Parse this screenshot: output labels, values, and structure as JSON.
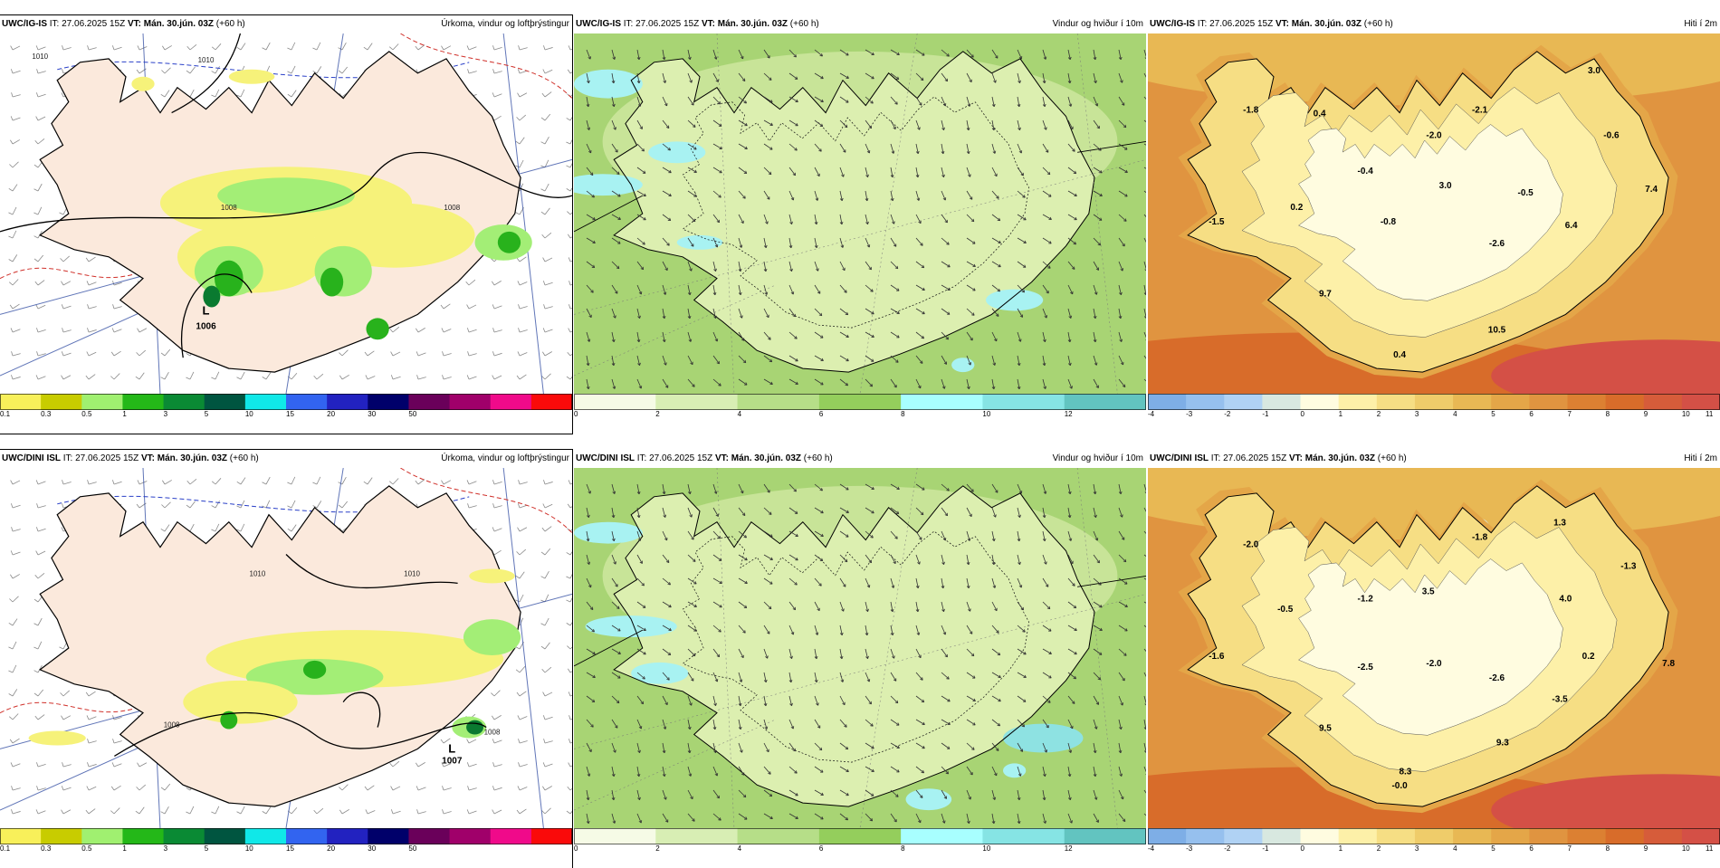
{
  "panels": [
    {
      "model": "UWC/IG-IS",
      "it_label": "IT:",
      "it_value": "27.06.2025 15Z",
      "vt_label": "VT:",
      "vt_value": "Mán. 30.jún. 03Z",
      "lead": "(+60 h)",
      "field": "Úrkoma, vindur og loftþrýstingur",
      "type": "precip",
      "colorbar": {
        "colors": [
          "#f8f05a",
          "#c8cc00",
          "#a0f070",
          "#24b818",
          "#0a8a34",
          "#005540",
          "#10e8e8",
          "#3264f0",
          "#2222c0",
          "#00006a",
          "#6a005a",
          "#a0006a",
          "#f00a8a",
          "#fa0a0a"
        ],
        "labels": [
          "0.1",
          "0.3",
          "0.5",
          "1",
          "3",
          "5",
          "10",
          "15",
          "20",
          "30",
          "50"
        ]
      },
      "annotations": [
        {
          "text": "L",
          "kind": "low",
          "ax": 0.36,
          "ay": 0.78
        },
        {
          "text": "1006",
          "kind": "pressure",
          "ax": 0.36,
          "ay": 0.82
        },
        {
          "text": "1008",
          "kind": "isobar",
          "ax": 0.4,
          "ay": 0.49
        },
        {
          "text": "1010",
          "kind": "isobar",
          "ax": 0.36,
          "ay": 0.08
        },
        {
          "text": "1008",
          "kind": "isobar",
          "ax": 0.79,
          "ay": 0.49
        },
        {
          "text": "1010",
          "kind": "isobar",
          "ax": 0.07,
          "ay": 0.07
        }
      ]
    },
    {
      "model": "UWC/IG-IS",
      "it_label": "IT:",
      "it_value": "27.06.2025 15Z",
      "vt_label": "VT:",
      "vt_value": "Mán. 30.jún. 03Z",
      "lead": "(+60 h)",
      "field": "Vindur og hviður í 10m",
      "type": "wind",
      "colorbar": {
        "colors": [
          "#f6fbe6",
          "#d8eeb4",
          "#b6de88",
          "#94ce5c",
          "#a8ffff",
          "#86e4e4",
          "#62c4c0"
        ],
        "labels": [
          "0",
          "2",
          "4",
          "6",
          "8",
          "10",
          "12"
        ]
      },
      "annotations": []
    },
    {
      "model": "UWC/IG-IS",
      "it_label": "IT:",
      "it_value": "27.06.2025 15Z",
      "vt_label": "VT:",
      "vt_value": "Mán. 30.jún. 03Z",
      "lead": "(+60 h)",
      "field": "Hiti í 2m",
      "type": "temp",
      "colorbar": {
        "colors": [
          "#7eaee6",
          "#96c0ee",
          "#b0d2f4",
          "#d8e8e0",
          "#fffce0",
          "#fdf0a8",
          "#f6de84",
          "#efcc6a",
          "#e8b854",
          "#e4a648",
          "#e09440",
          "#dc8032",
          "#d86c2a",
          "#d65c3a",
          "#d45046"
        ],
        "labels": [
          "-4",
          "-3",
          "-2",
          "-1",
          "0",
          "1",
          "2",
          "3",
          "4",
          "5",
          "6",
          "7",
          "8",
          "9",
          "10",
          "11"
        ]
      },
      "annotations": [
        {
          "text": "-1.8",
          "kind": "temp",
          "ax": 0.18,
          "ay": 0.22
        },
        {
          "text": "0.4",
          "kind": "temp",
          "ax": 0.3,
          "ay": 0.23
        },
        {
          "text": "3.0",
          "kind": "temp",
          "ax": 0.78,
          "ay": 0.11
        },
        {
          "text": "-2.1",
          "kind": "temp",
          "ax": 0.58,
          "ay": 0.22
        },
        {
          "text": "-2.0",
          "kind": "temp",
          "ax": 0.5,
          "ay": 0.29
        },
        {
          "text": "-0.6",
          "kind": "temp",
          "ax": 0.81,
          "ay": 0.29
        },
        {
          "text": "-0.4",
          "kind": "temp",
          "ax": 0.38,
          "ay": 0.39
        },
        {
          "text": "3.0",
          "kind": "temp",
          "ax": 0.52,
          "ay": 0.43
        },
        {
          "text": "-0.5",
          "kind": "temp",
          "ax": 0.66,
          "ay": 0.45
        },
        {
          "text": "7.4",
          "kind": "temp",
          "ax": 0.88,
          "ay": 0.44
        },
        {
          "text": "0.2",
          "kind": "temp",
          "ax": 0.26,
          "ay": 0.49
        },
        {
          "text": "-1.5",
          "kind": "temp",
          "ax": 0.12,
          "ay": 0.53
        },
        {
          "text": "-0.8",
          "kind": "temp",
          "ax": 0.42,
          "ay": 0.53
        },
        {
          "text": "6.4",
          "kind": "temp",
          "ax": 0.74,
          "ay": 0.54
        },
        {
          "text": "-2.6",
          "kind": "temp",
          "ax": 0.61,
          "ay": 0.59
        },
        {
          "text": "9.7",
          "kind": "temp",
          "ax": 0.31,
          "ay": 0.73
        },
        {
          "text": "10.5",
          "kind": "temp",
          "ax": 0.61,
          "ay": 0.83
        },
        {
          "text": "0.4",
          "kind": "temp",
          "ax": 0.44,
          "ay": 0.9
        }
      ]
    },
    {
      "model": "UWC/DINI ISL",
      "it_label": "IT:",
      "it_value": "27.06.2025 15Z",
      "vt_label": "VT:",
      "vt_value": "Mán. 30.jún. 03Z",
      "lead": "(+60 h)",
      "field": "Úrkoma, vindur og loftþrýstingur",
      "type": "precip",
      "colorbar": {
        "colors": [
          "#f8f05a",
          "#c8cc00",
          "#a0f070",
          "#24b818",
          "#0a8a34",
          "#005540",
          "#10e8e8",
          "#3264f0",
          "#2222c0",
          "#00006a",
          "#6a005a",
          "#a0006a",
          "#f00a8a",
          "#fa0a0a"
        ],
        "labels": [
          "0.1",
          "0.3",
          "0.5",
          "1",
          "3",
          "5",
          "10",
          "15",
          "20",
          "30",
          "50"
        ]
      },
      "annotations": [
        {
          "text": "L",
          "kind": "low",
          "ax": 0.79,
          "ay": 0.79
        },
        {
          "text": "1007",
          "kind": "pressure",
          "ax": 0.79,
          "ay": 0.82
        },
        {
          "text": "1010",
          "kind": "isobar",
          "ax": 0.45,
          "ay": 0.3
        },
        {
          "text": "1010",
          "kind": "isobar",
          "ax": 0.72,
          "ay": 0.3
        },
        {
          "text": "1008",
          "kind": "isobar",
          "ax": 0.3,
          "ay": 0.72
        },
        {
          "text": "1008",
          "kind": "isobar",
          "ax": 0.86,
          "ay": 0.74
        }
      ]
    },
    {
      "model": "UWC/DINI ISL",
      "it_label": "IT:",
      "it_value": "27.06.2025 15Z",
      "vt_label": "VT:",
      "vt_value": "Mán. 30.jún. 03Z",
      "lead": "(+60 h)",
      "field": "Vindur og hviður í 10m",
      "type": "wind",
      "colorbar": {
        "colors": [
          "#f6fbe6",
          "#d8eeb4",
          "#b6de88",
          "#94ce5c",
          "#a8ffff",
          "#86e4e4",
          "#62c4c0"
        ],
        "labels": [
          "0",
          "2",
          "4",
          "6",
          "8",
          "10",
          "12"
        ]
      },
      "annotations": []
    },
    {
      "model": "UWC/DINI ISL",
      "it_label": "IT:",
      "it_value": "27.06.2025 15Z",
      "vt_label": "VT:",
      "vt_value": "Mán. 30.jún. 03Z",
      "lead": "(+60 h)",
      "field": "Hiti í 2m",
      "type": "temp",
      "colorbar": {
        "colors": [
          "#7eaee6",
          "#96c0ee",
          "#b0d2f4",
          "#d8e8e0",
          "#fffce0",
          "#fdf0a8",
          "#f6de84",
          "#efcc6a",
          "#e8b854",
          "#e4a648",
          "#e09440",
          "#dc8032",
          "#d86c2a",
          "#d65c3a",
          "#d45046"
        ],
        "labels": [
          "-4",
          "-3",
          "-2",
          "-1",
          "0",
          "1",
          "2",
          "3",
          "4",
          "5",
          "6",
          "7",
          "8",
          "9",
          "10",
          "11"
        ]
      },
      "annotations": [
        {
          "text": "-2.0",
          "kind": "temp",
          "ax": 0.18,
          "ay": 0.22
        },
        {
          "text": "1.3",
          "kind": "temp",
          "ax": 0.72,
          "ay": 0.16
        },
        {
          "text": "-1.8",
          "kind": "temp",
          "ax": 0.58,
          "ay": 0.2
        },
        {
          "text": "-1.3",
          "kind": "temp",
          "ax": 0.84,
          "ay": 0.28
        },
        {
          "text": "3.5",
          "kind": "temp",
          "ax": 0.49,
          "ay": 0.35
        },
        {
          "text": "-1.2",
          "kind": "temp",
          "ax": 0.38,
          "ay": 0.37
        },
        {
          "text": "4.0",
          "kind": "temp",
          "ax": 0.73,
          "ay": 0.37
        },
        {
          "text": "-0.5",
          "kind": "temp",
          "ax": 0.24,
          "ay": 0.4
        },
        {
          "text": "-1.6",
          "kind": "temp",
          "ax": 0.12,
          "ay": 0.53
        },
        {
          "text": "0.2",
          "kind": "temp",
          "ax": 0.77,
          "ay": 0.53
        },
        {
          "text": "7.8",
          "kind": "temp",
          "ax": 0.91,
          "ay": 0.55
        },
        {
          "text": "-2.5",
          "kind": "temp",
          "ax": 0.38,
          "ay": 0.56
        },
        {
          "text": "-2.0",
          "kind": "temp",
          "ax": 0.5,
          "ay": 0.55
        },
        {
          "text": "-2.6",
          "kind": "temp",
          "ax": 0.61,
          "ay": 0.59
        },
        {
          "text": "-3.5",
          "kind": "temp",
          "ax": 0.72,
          "ay": 0.65
        },
        {
          "text": "9.5",
          "kind": "temp",
          "ax": 0.31,
          "ay": 0.73
        },
        {
          "text": "9.3",
          "kind": "temp",
          "ax": 0.62,
          "ay": 0.77
        },
        {
          "text": "8.3",
          "kind": "temp",
          "ax": 0.45,
          "ay": 0.85
        },
        {
          "text": "-0.0",
          "kind": "temp",
          "ax": 0.44,
          "ay": 0.89
        }
      ]
    }
  ]
}
